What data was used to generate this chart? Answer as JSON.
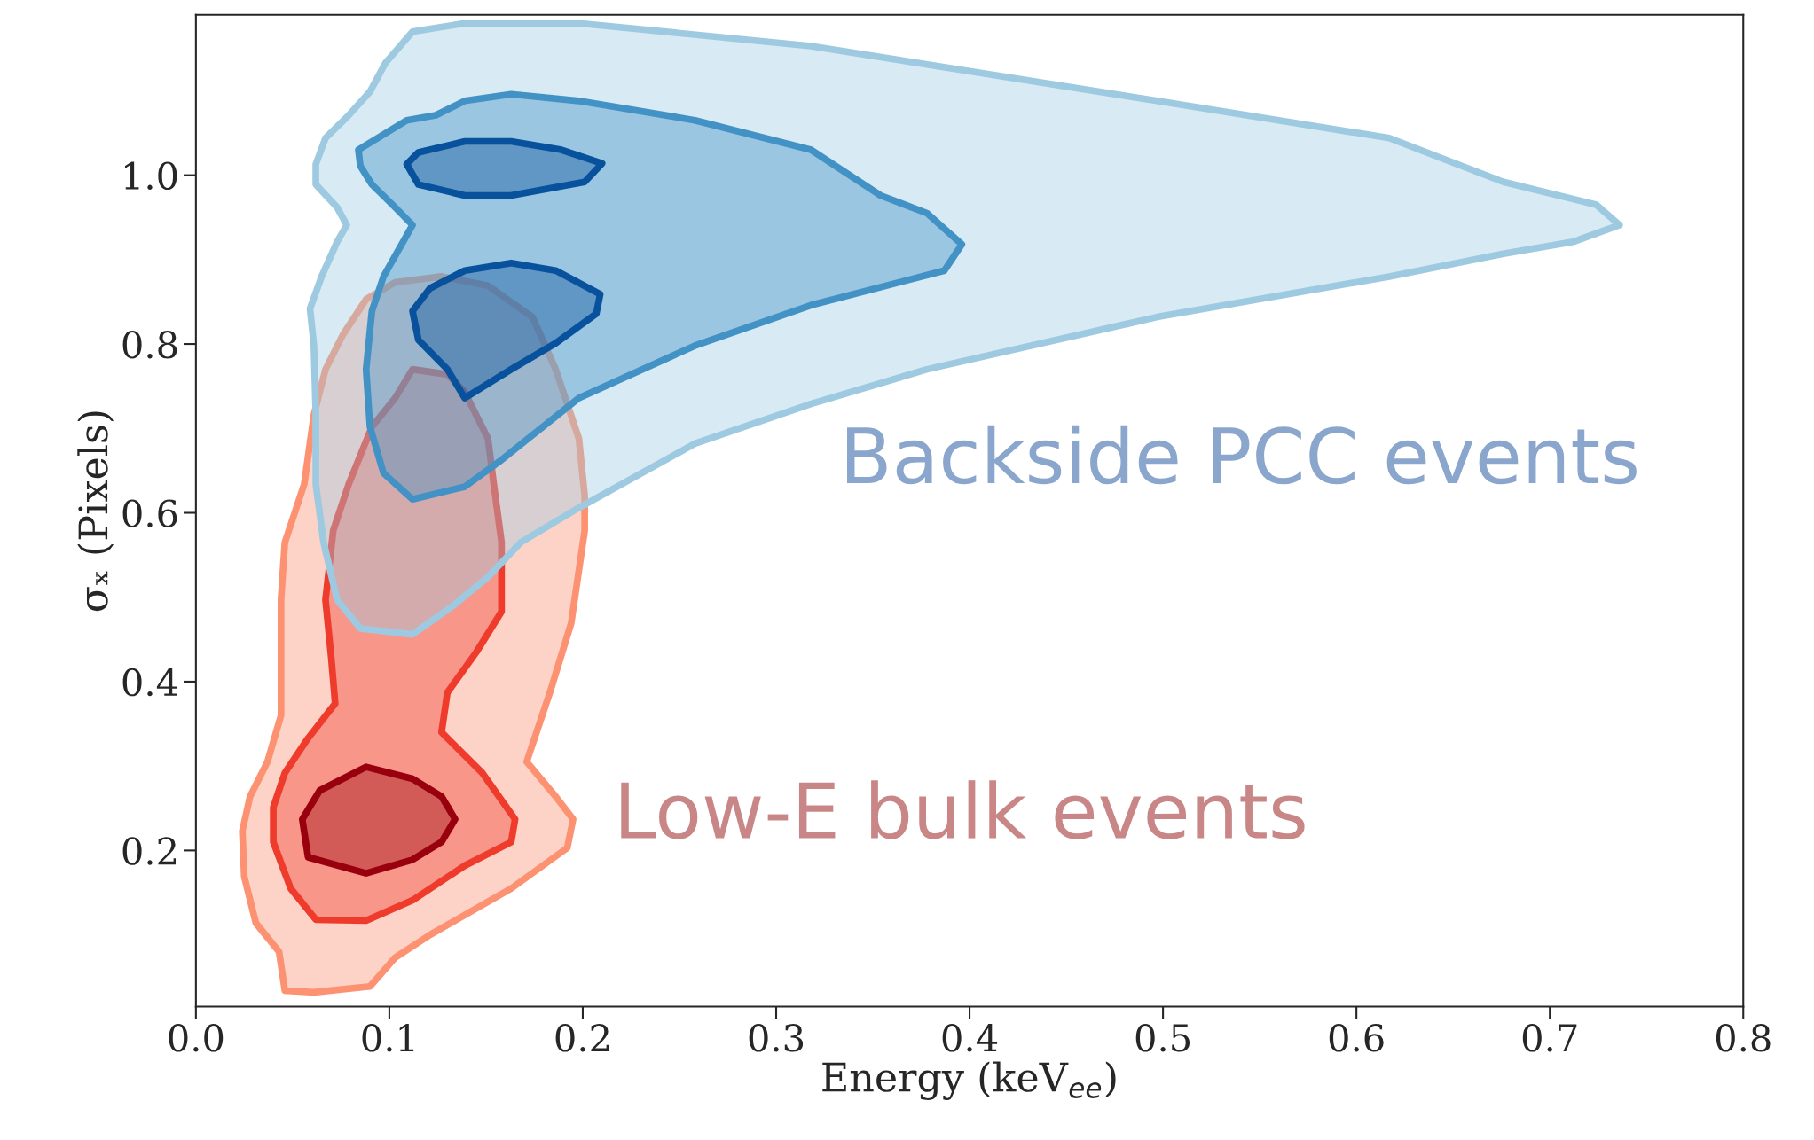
{
  "chart_data": {
    "type": "area",
    "xlabel": "Energy (keV$_{ee}$)",
    "ylabel": "σₓ (Pixels)",
    "xlim": [
      0,
      0.8
    ],
    "ylim": [
      0.015,
      1.19
    ],
    "xticks": [
      {
        "value": 0,
        "label": "0.0"
      },
      0.1,
      0.2,
      0.3,
      0.4,
      0.5,
      0.6,
      0.7,
      0.8
    ],
    "yticks": [
      0.2,
      0.4,
      0.6,
      0.8,
      {
        "value": 1,
        "label": "1.0"
      }
    ],
    "grid": false,
    "legend": false,
    "series": [
      {
        "color": "#fc9272",
        "x": [
          0.046,
          0.061,
          0.09,
          0.103,
          0.121,
          0.163,
          0.192,
          0.195,
          0.186,
          0.171,
          0.183,
          0.194,
          0.201,
          0.201,
          0.198,
          0.186,
          0.174,
          0.151,
          0.127,
          0.103,
          0.088,
          0.076,
          0.067,
          0.061,
          0.056,
          0.046,
          0.044,
          0.044,
          0.037,
          0.028,
          0.024,
          0.025,
          0.031,
          0.043
        ],
        "values": [
          0.034,
          0.032,
          0.039,
          0.073,
          0.1,
          0.155,
          0.203,
          0.237,
          0.264,
          0.305,
          0.387,
          0.469,
          0.579,
          0.62,
          0.688,
          0.77,
          0.832,
          0.869,
          0.88,
          0.873,
          0.853,
          0.811,
          0.77,
          0.716,
          0.634,
          0.565,
          0.497,
          0.36,
          0.305,
          0.264,
          0.223,
          0.169,
          0.114,
          0.08
        ]
      },
      {
        "color": "#ef3b2c",
        "x": [
          0.062,
          0.088,
          0.112,
          0.139,
          0.163,
          0.165,
          0.148,
          0.127,
          0.13,
          0.145,
          0.158,
          0.158,
          0.154,
          0.151,
          0.139,
          0.13,
          0.112,
          0.103,
          0.091,
          0.079,
          0.071,
          0.067,
          0.07,
          0.072,
          0.058,
          0.046,
          0.04,
          0.04,
          0.049
        ],
        "values": [
          0.118,
          0.117,
          0.141,
          0.182,
          0.21,
          0.237,
          0.292,
          0.34,
          0.387,
          0.435,
          0.483,
          0.565,
          0.634,
          0.688,
          0.743,
          0.764,
          0.77,
          0.736,
          0.702,
          0.634,
          0.579,
          0.497,
          0.428,
          0.374,
          0.333,
          0.292,
          0.251,
          0.21,
          0.155
        ]
      },
      {
        "color": "#99000d",
        "x": [
          0.058,
          0.088,
          0.112,
          0.127,
          0.134,
          0.127,
          0.112,
          0.088,
          0.064,
          0.055
        ],
        "values": [
          0.192,
          0.173,
          0.189,
          0.21,
          0.237,
          0.264,
          0.285,
          0.299,
          0.271,
          0.237
        ]
      },
      {
        "color": "#9ecae1",
        "x": [
          0.062,
          0.067,
          0.079,
          0.09,
          0.098,
          0.112,
          0.139,
          0.198,
          0.318,
          0.497,
          0.617,
          0.676,
          0.724,
          0.736,
          0.712,
          0.676,
          0.617,
          0.497,
          0.378,
          0.318,
          0.258,
          0.198,
          0.168,
          0.151,
          0.133,
          0.112,
          0.085,
          0.073,
          0.066,
          0.062,
          0.062,
          0.061,
          0.059,
          0.065,
          0.073,
          0.078,
          0.073,
          0.062
        ],
        "values": [
          1.013,
          1.044,
          1.071,
          1.099,
          1.133,
          1.17,
          1.18,
          1.18,
          1.153,
          1.088,
          1.044,
          0.992,
          0.965,
          0.941,
          0.921,
          0.907,
          0.88,
          0.832,
          0.77,
          0.729,
          0.682,
          0.606,
          0.565,
          0.524,
          0.49,
          0.456,
          0.463,
          0.497,
          0.565,
          0.634,
          0.716,
          0.798,
          0.842,
          0.88,
          0.921,
          0.941,
          0.962,
          0.989
        ]
      },
      {
        "color": "#4292c6",
        "x": [
          0.084,
          0.109,
          0.124,
          0.139,
          0.163,
          0.198,
          0.258,
          0.318,
          0.354,
          0.378,
          0.396,
          0.387,
          0.318,
          0.258,
          0.198,
          0.157,
          0.139,
          0.112,
          0.097,
          0.09,
          0.088,
          0.091,
          0.097,
          0.112,
          0.103,
          0.091,
          0.085
        ],
        "values": [
          1.03,
          1.065,
          1.071,
          1.088,
          1.096,
          1.088,
          1.065,
          1.03,
          0.976,
          0.955,
          0.918,
          0.887,
          0.846,
          0.798,
          0.736,
          0.661,
          0.631,
          0.616,
          0.647,
          0.702,
          0.77,
          0.839,
          0.88,
          0.941,
          0.962,
          0.989,
          1.011
        ]
      },
      {
        "color": "#08519c",
        "x": [
          0.109,
          0.115,
          0.139,
          0.163,
          0.189,
          0.21,
          0.201,
          0.163,
          0.139,
          0.115,
          null,
          0.112,
          0.121,
          0.139,
          0.163,
          0.186,
          0.209,
          0.207,
          0.186,
          0.163,
          0.139,
          0.13,
          0.115
        ],
        "values": [
          1.013,
          1.027,
          1.04,
          1.04,
          1.03,
          1.014,
          0.992,
          0.976,
          0.976,
          0.989,
          null,
          0.839,
          0.866,
          0.887,
          0.896,
          0.887,
          0.859,
          0.836,
          0.801,
          0.77,
          0.736,
          0.77,
          0.805
        ]
      }
    ],
    "annotations": [
      "Backside PCC events",
      "Low-E bulk events"
    ]
  }
}
